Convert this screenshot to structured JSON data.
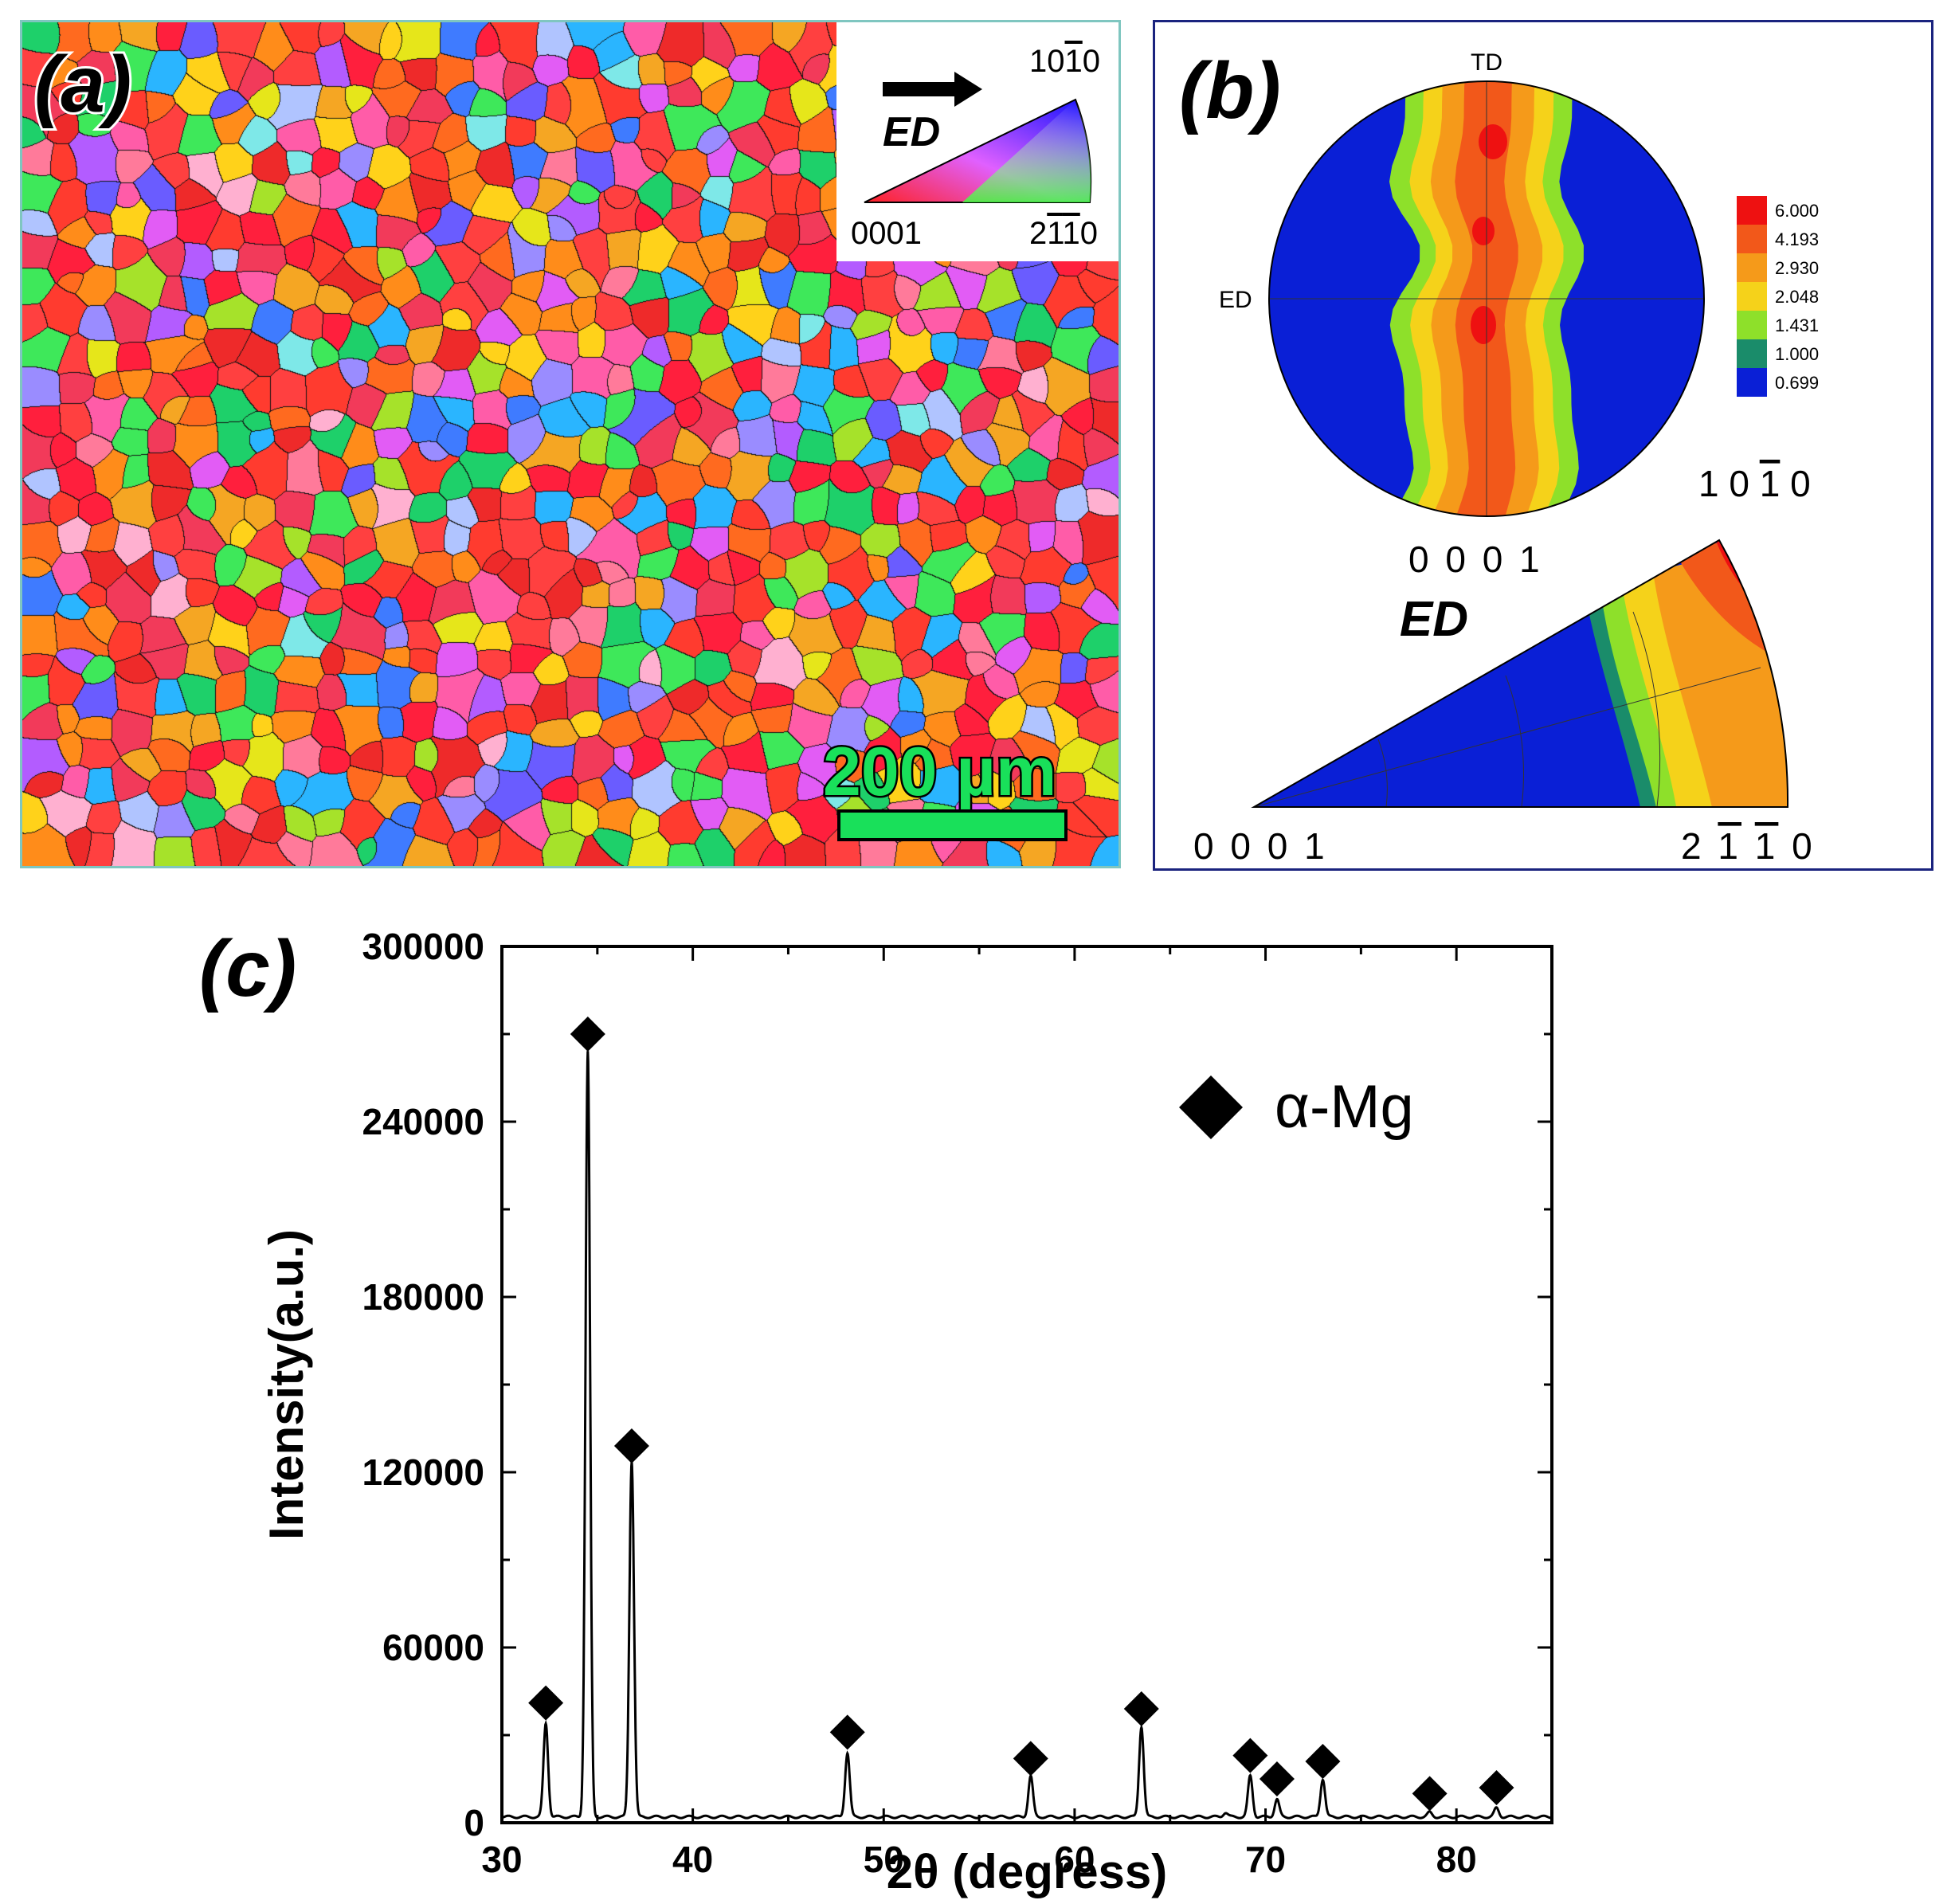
{
  "panel_a": {
    "label": "(a)",
    "legend": {
      "arrow_label": "ED",
      "corner_top": "10¯10",
      "corner_top_parts": [
        "10",
        "1",
        "0"
      ],
      "corner_bottom_left": "0001",
      "corner_bottom_right": "2¯1¯10",
      "corner_bottom_right_parts": [
        "2",
        "1",
        "1",
        "0"
      ]
    },
    "scale_bar": {
      "label": "200 µm",
      "color": "#19e05a"
    }
  },
  "panel_b": {
    "label": "(b)",
    "pole_figure": {
      "top_label": "TD",
      "left_label": "ED",
      "pole": "1 0 ¯1 0",
      "pole_parts": [
        "1 0 ",
        "1",
        " 0"
      ]
    },
    "colorbar": {
      "levels": [
        "6.000",
        "4.193",
        "2.930",
        "2.048",
        "1.431",
        "1.000",
        "0.699"
      ],
      "colors": [
        "#ee1111",
        "#f2581a",
        "#f59a1a",
        "#f5d21a",
        "#8ee02a",
        "#1a8c6a",
        "#0a1fd6"
      ]
    },
    "ipf": {
      "title": "ED",
      "top_left_label": "0 0 0 1",
      "bottom_left": "0 0 0 1",
      "bottom_right": "2 ¯1 ¯1 0",
      "bottom_right_parts": [
        "2 ",
        "1",
        " ",
        "1",
        " 0"
      ]
    }
  },
  "chart_data": {
    "type": "line",
    "label": "(c)",
    "title": "",
    "xlabel": "2θ (degress)",
    "ylabel": "Intensity(a.u.)",
    "xlim": [
      30,
      85
    ],
    "ylim": [
      0,
      300000
    ],
    "xticks": [
      30,
      40,
      50,
      60,
      70,
      80
    ],
    "yticks": [
      0,
      60000,
      120000,
      180000,
      240000,
      300000
    ],
    "legend": {
      "marker": "diamond",
      "label": "α-Mg",
      "position": "top-right"
    },
    "baseline": 2000,
    "peaks": [
      {
        "x": 32.3,
        "y": 32000
      },
      {
        "x": 34.5,
        "y": 262000
      },
      {
        "x": 36.8,
        "y": 122000
      },
      {
        "x": 48.1,
        "y": 22000
      },
      {
        "x": 57.7,
        "y": 14000
      },
      {
        "x": 63.5,
        "y": 31000
      },
      {
        "x": 67.9,
        "y": 1500
      },
      {
        "x": 69.2,
        "y": 14000
      },
      {
        "x": 70.6,
        "y": 6000
      },
      {
        "x": 73.0,
        "y": 13000
      },
      {
        "x": 78.6,
        "y": 1500
      },
      {
        "x": 82.1,
        "y": 3000
      }
    ],
    "markers": [
      {
        "x": 32.3,
        "y": 41000
      },
      {
        "x": 34.5,
        "y": 270000
      },
      {
        "x": 36.8,
        "y": 129000
      },
      {
        "x": 48.1,
        "y": 31000
      },
      {
        "x": 57.7,
        "y": 22000
      },
      {
        "x": 63.5,
        "y": 39000
      },
      {
        "x": 69.2,
        "y": 23000
      },
      {
        "x": 70.6,
        "y": 15000
      },
      {
        "x": 73.0,
        "y": 21000
      },
      {
        "x": 78.6,
        "y": 10000
      },
      {
        "x": 82.1,
        "y": 12000
      }
    ]
  }
}
